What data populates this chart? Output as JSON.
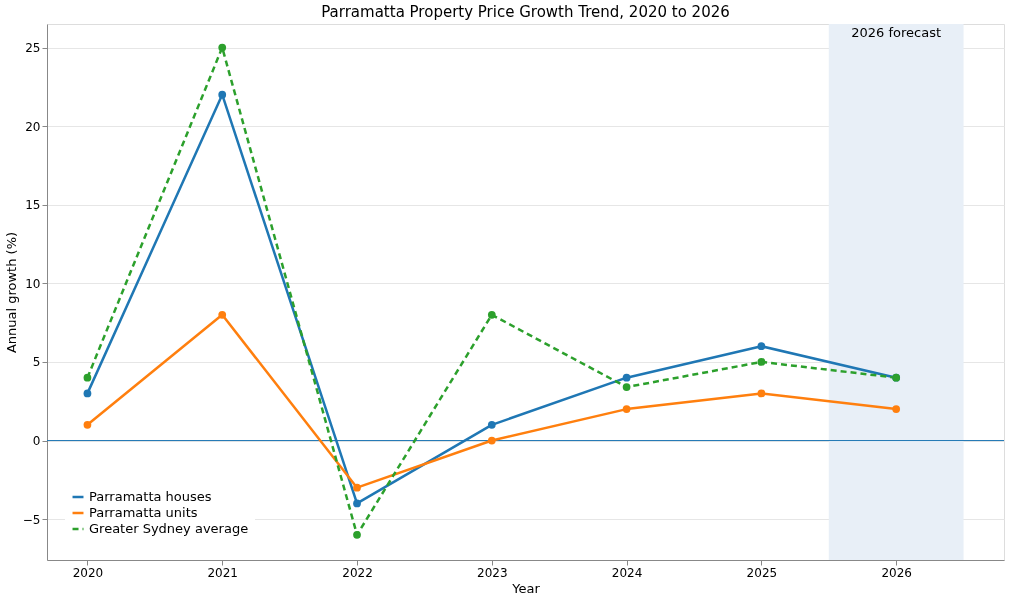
{
  "chart_data": {
    "type": "line",
    "title": "Parramatta Property Price Growth Trend, 2020 to 2026",
    "xlabel": "Year",
    "ylabel": "Annual growth (%)",
    "x": [
      2020,
      2021,
      2022,
      2023,
      2024,
      2025,
      2026
    ],
    "series": [
      {
        "name": "Parramatta houses",
        "color": "#1f77b4",
        "values": [
          3,
          22,
          -4,
          1,
          4,
          6,
          4
        ],
        "line_style": "solid"
      },
      {
        "name": "Parramatta units",
        "color": "#ff7f0e",
        "values": [
          1,
          8,
          -3,
          0,
          2,
          3,
          2
        ],
        "line_style": "solid"
      },
      {
        "name": "Greater Sydney average",
        "color": "#2ca02c",
        "values": [
          4,
          25,
          -6,
          8,
          3.4,
          5,
          4
        ],
        "line_style": "dashed"
      }
    ],
    "xlim": [
      2019.7,
      2026.8
    ],
    "xticks": [
      2020,
      2021,
      2022,
      2023,
      2024,
      2025,
      2026
    ],
    "ylim": [
      -7.6,
      26.5
    ],
    "yticks": [
      -5,
      0,
      5,
      10,
      15,
      20,
      25
    ],
    "ref_lines": [
      {
        "axis": "y",
        "value": 0,
        "color": "#1f77b4"
      }
    ],
    "bands": [
      {
        "axis": "x",
        "from": 2025.5,
        "to": 2026.5,
        "label": "2026 forecast",
        "color": "#e8eff7"
      }
    ],
    "grid": "y",
    "legend": "bottom left",
    "marker": "circle"
  }
}
